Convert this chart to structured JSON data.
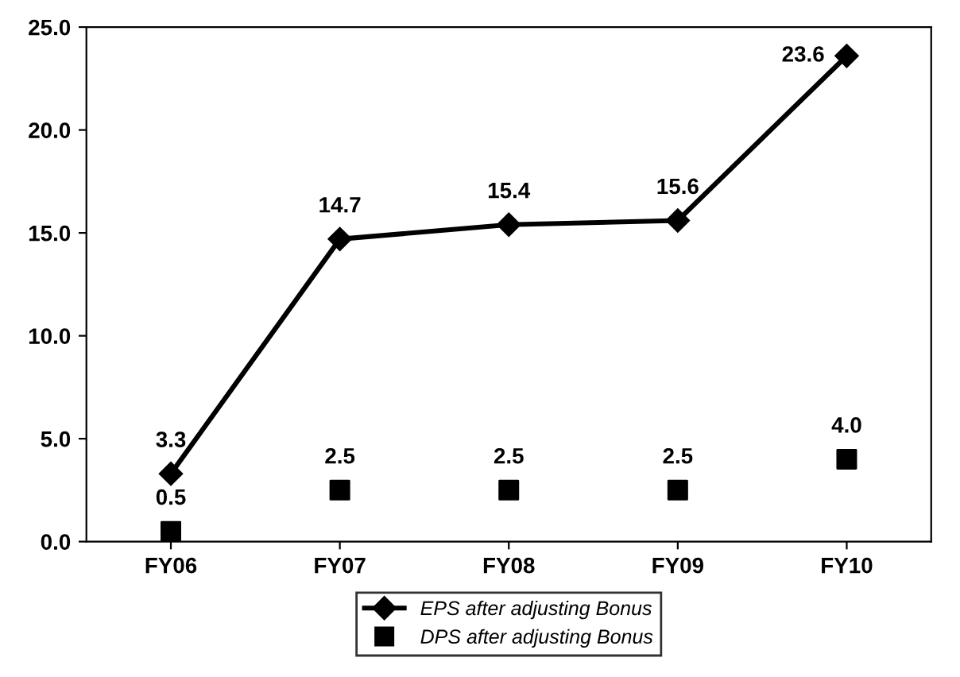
{
  "chart_data": {
    "type": "line",
    "categories": [
      "FY06",
      "FY07",
      "FY08",
      "FY09",
      "FY10"
    ],
    "series": [
      {
        "name": "EPS after adjusting Bonus",
        "color": "#000000",
        "marker": "diamond",
        "values": [
          3.3,
          14.7,
          15.4,
          15.6,
          23.6
        ],
        "value_labels": [
          "3.3",
          "14.7",
          "15.4",
          "15.6",
          "23.6"
        ]
      },
      {
        "name": "DPS after adjusting Bonus",
        "type": "scatter",
        "color": "#000000",
        "marker": "square",
        "values": [
          0.5,
          2.5,
          2.5,
          2.5,
          4.0
        ],
        "value_labels": [
          "0.5",
          "2.5",
          "2.5",
          "2.5",
          "4.0"
        ]
      }
    ],
    "ylim": [
      0,
      25
    ],
    "yticks": [
      {
        "value": 0,
        "label": "0.0"
      },
      {
        "value": 5,
        "label": "5.0"
      },
      {
        "value": 10,
        "label": "10.0"
      },
      {
        "value": 15,
        "label": "15.0"
      },
      {
        "value": 20,
        "label": "20.0"
      },
      {
        "value": 25,
        "label": "25.0"
      }
    ],
    "grid": false,
    "legend": "bottom"
  }
}
